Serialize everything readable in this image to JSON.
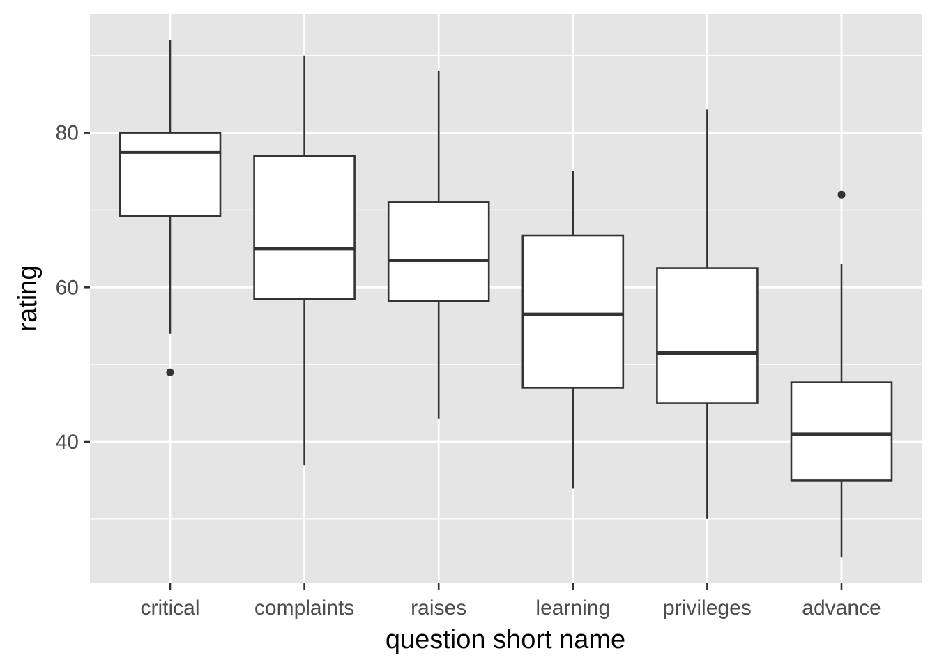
{
  "chart_data": {
    "type": "boxplot",
    "title": "",
    "xlabel": "question short name",
    "ylabel": "rating",
    "ylim": [
      22,
      96
    ],
    "y_ticks": [
      40,
      60,
      80
    ],
    "y_minor_ticks": [
      30,
      50,
      70,
      90
    ],
    "grid": true,
    "categories": [
      "critical",
      "complaints",
      "raises",
      "learning",
      "privileges",
      "advance"
    ],
    "boxes": [
      {
        "category": "critical",
        "whisker_low": 54,
        "q1": 69.2,
        "median": 77.5,
        "q3": 80,
        "whisker_high": 92,
        "outliers": [
          49
        ]
      },
      {
        "category": "complaints",
        "whisker_low": 37,
        "q1": 58.5,
        "median": 65,
        "q3": 77,
        "whisker_high": 90,
        "outliers": []
      },
      {
        "category": "raises",
        "whisker_low": 43,
        "q1": 58.2,
        "median": 63.5,
        "q3": 71,
        "whisker_high": 88,
        "outliers": []
      },
      {
        "category": "learning",
        "whisker_low": 34,
        "q1": 47,
        "median": 56.5,
        "q3": 66.7,
        "whisker_high": 75,
        "outliers": []
      },
      {
        "category": "privileges",
        "whisker_low": 30,
        "q1": 45,
        "median": 51.5,
        "q3": 62.5,
        "whisker_high": 83,
        "outliers": []
      },
      {
        "category": "advance",
        "whisker_low": 25,
        "q1": 35,
        "median": 41,
        "q3": 47.7,
        "whisker_high": 63,
        "outliers": [
          72
        ]
      }
    ],
    "colors": {
      "panel_background": "#E5E5E5",
      "grid": "#FFFFFF",
      "box_fill": "#FFFFFF",
      "box_stroke": "#333333",
      "tick_text": "#4D4D4D",
      "axis_title": "#000000"
    }
  }
}
